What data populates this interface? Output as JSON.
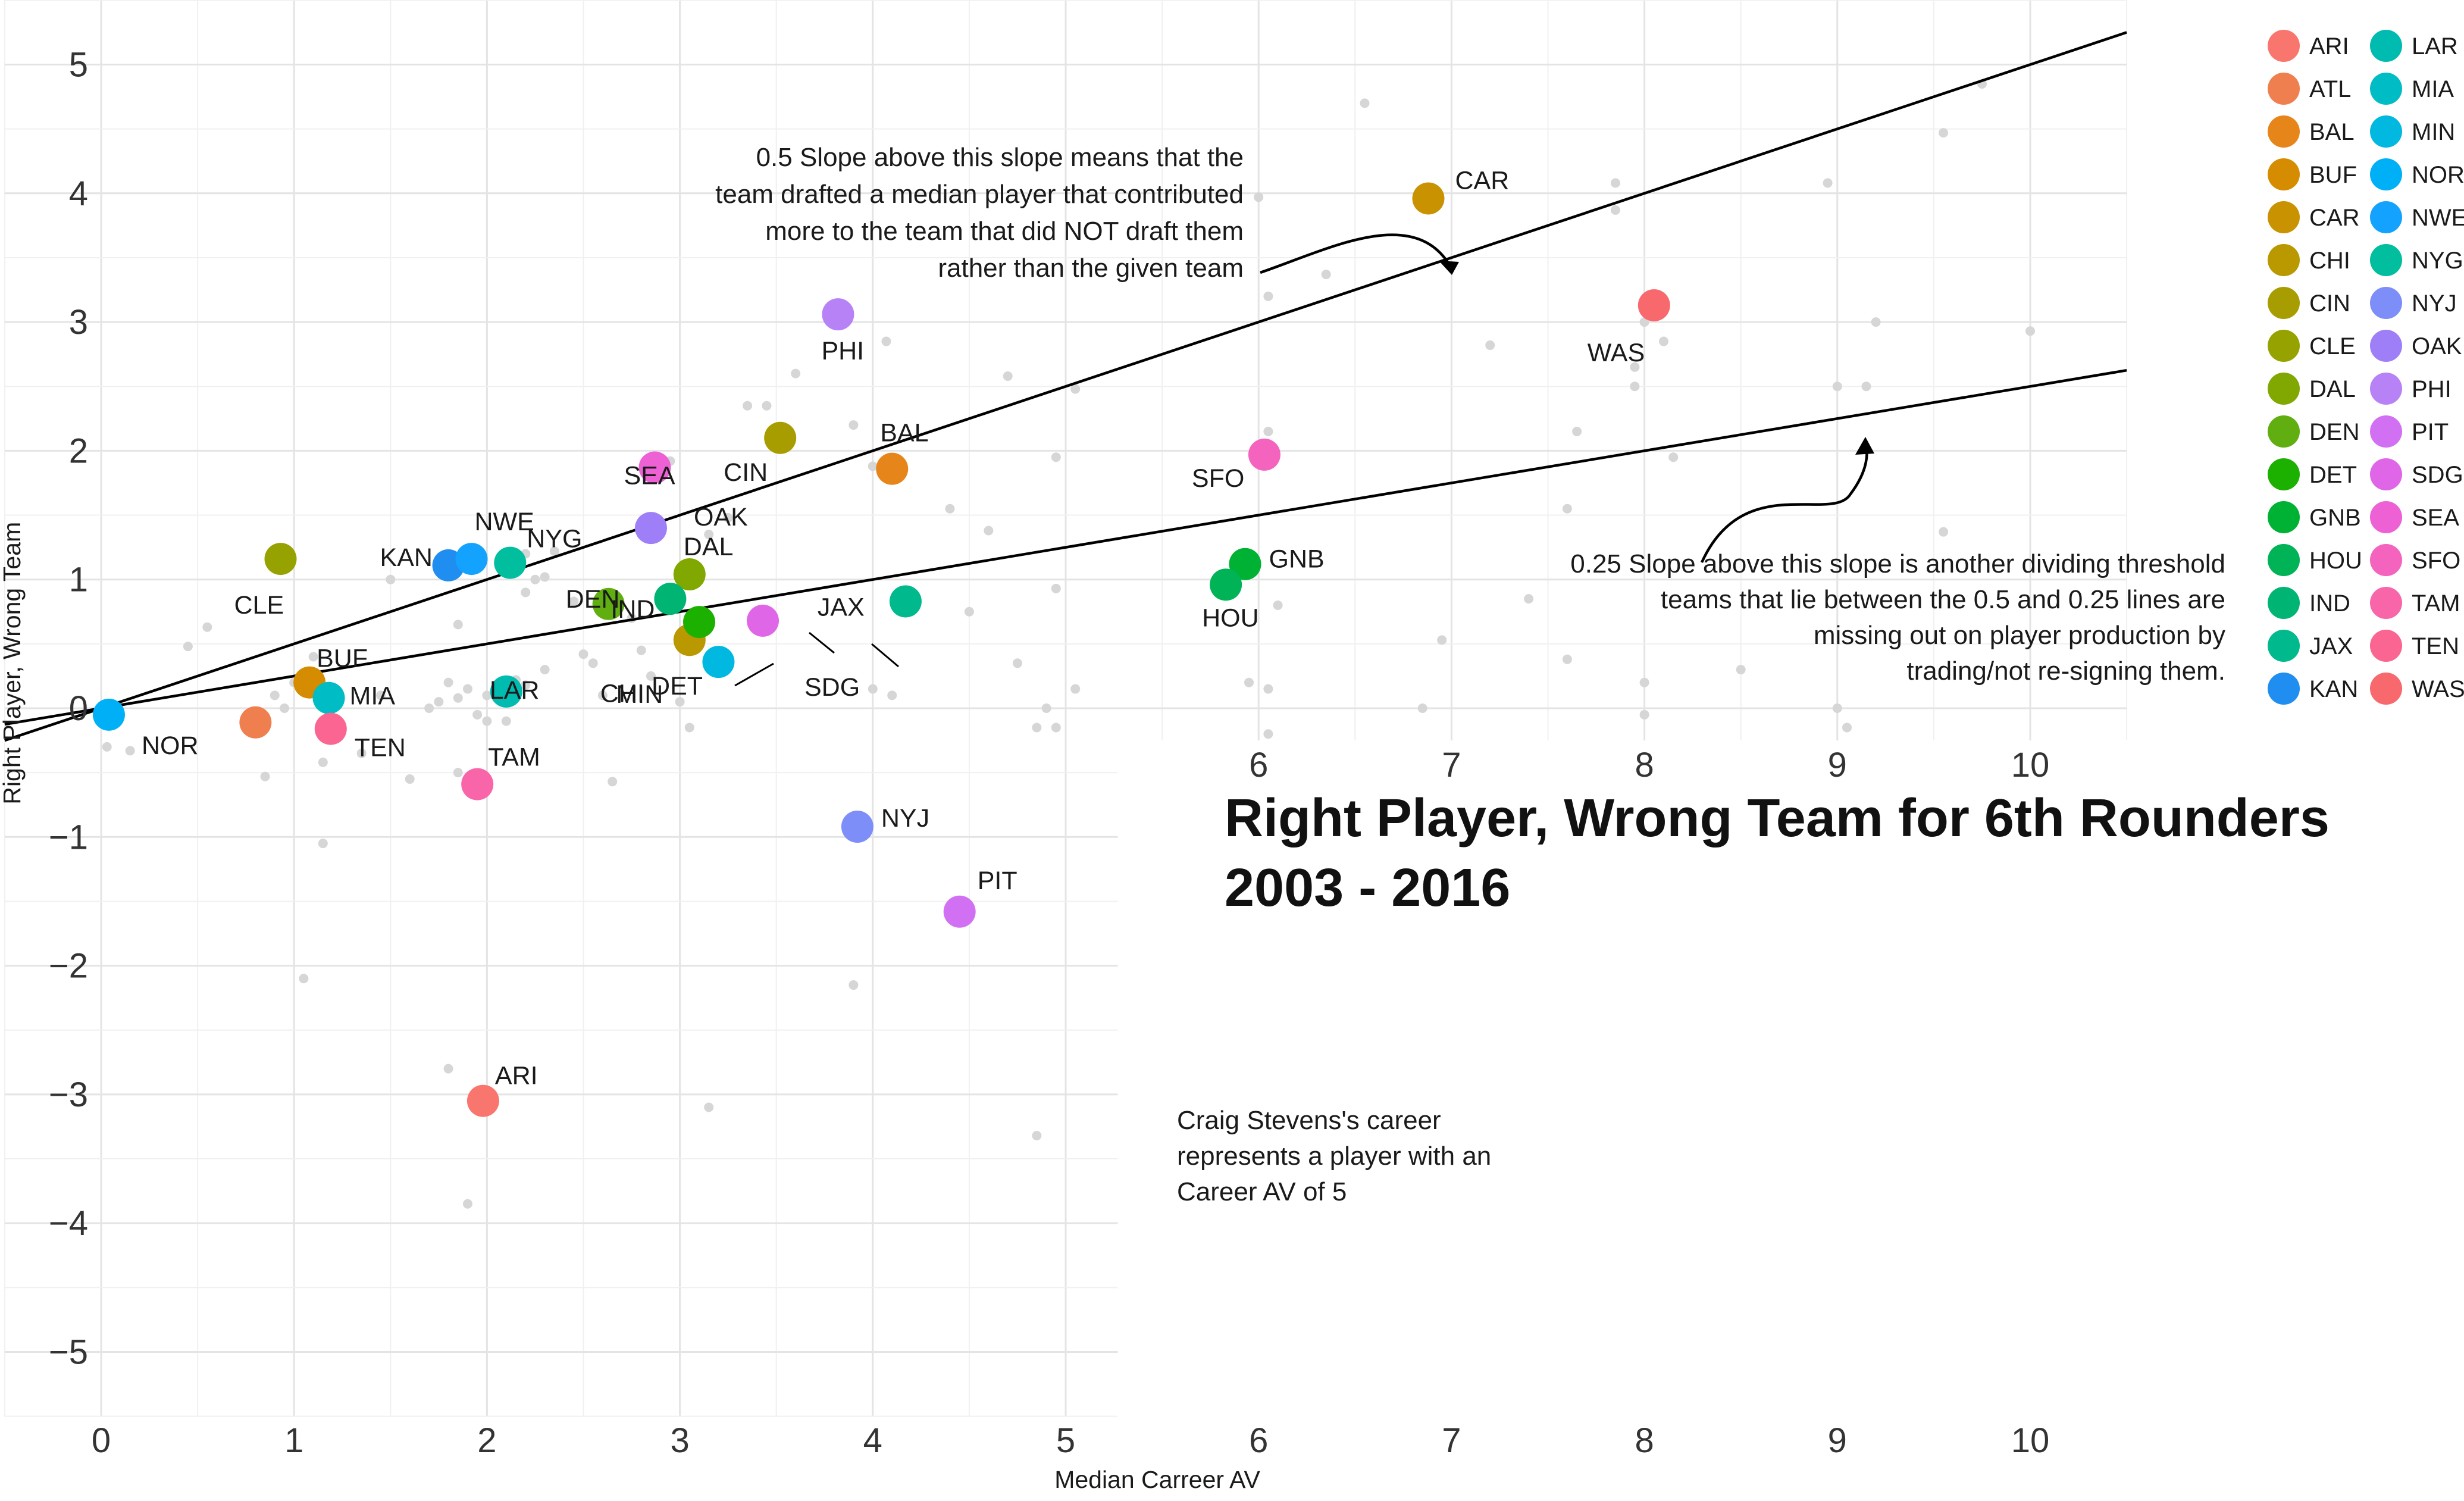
{
  "chart_data": {
    "type": "scatter",
    "title_lines": [
      "Right Player, Wrong Team for 6th Rounders",
      "2003 - 2016"
    ],
    "xlabel": "Median Carreer AV",
    "ylabel": "Right Player, Wrong Team",
    "xlim": [
      -0.5,
      10.5
    ],
    "ylim": [
      -5.5,
      5.5
    ],
    "x_ticks": [
      0,
      1,
      2,
      3,
      4,
      5,
      6,
      7,
      8,
      9,
      10
    ],
    "y_ticks": [
      5,
      4,
      3,
      2,
      1,
      0,
      -1,
      -2,
      -3,
      -4,
      -5
    ],
    "y_tick_labels": [
      "5",
      "4",
      "3",
      "2",
      "1",
      "0",
      "−1",
      "−2",
      "−3",
      "−4",
      "−5"
    ],
    "grid": true,
    "legend_placement": "right",
    "reference_lines": [
      {
        "slope": 0.5,
        "label": "0.5 Slope"
      },
      {
        "slope": 0.25,
        "label": "0.25 Slope"
      }
    ],
    "annotations": {
      "slope_half": [
        "0.5 Slope above this slope means that the",
        "team drafted a median player that contributed",
        "more to the team that did NOT draft them",
        "rather than the given team"
      ],
      "slope_quarter": [
        "0.25 Slope above this slope is another dividing threshold",
        "teams that lie between the 0.5 and 0.25 lines are",
        "missing out on player production by",
        "trading/not re-signing them."
      ],
      "craig": [
        "Craig Stevens's career",
        "represents a player with an",
        "Career AV of 5"
      ]
    },
    "teams": [
      {
        "team": "ARI",
        "x": 1.98,
        "y": -3.05,
        "color": "#F8766D"
      },
      {
        "team": "ATL",
        "x": 0.8,
        "y": -0.11,
        "color": "#F07F4F"
      },
      {
        "team": "BAL",
        "x": 4.1,
        "y": 1.86,
        "color": "#E6861A"
      },
      {
        "team": "BUF",
        "x": 1.08,
        "y": 0.2,
        "color": "#D58C00"
      },
      {
        "team": "CAR",
        "x": 6.88,
        "y": 3.96,
        "color": "#C89200"
      },
      {
        "team": "CHI",
        "x": 3.05,
        "y": 0.53,
        "color": "#B99800"
      },
      {
        "team": "CIN",
        "x": 3.52,
        "y": 2.1,
        "color": "#A89D00"
      },
      {
        "team": "CLE",
        "x": 0.93,
        "y": 1.16,
        "color": "#96A200"
      },
      {
        "team": "DAL",
        "x": 3.05,
        "y": 1.04,
        "color": "#80A800"
      },
      {
        "team": "DEN",
        "x": 2.63,
        "y": 0.81,
        "color": "#60AE10"
      },
      {
        "team": "DET",
        "x": 3.1,
        "y": 0.67,
        "color": "#1CB000"
      },
      {
        "team": "GNB",
        "x": 5.93,
        "y": 1.12,
        "color": "#00B234"
      },
      {
        "team": "HOU",
        "x": 5.83,
        "y": 0.96,
        "color": "#00B356"
      },
      {
        "team": "IND",
        "x": 2.95,
        "y": 0.85,
        "color": "#00B573"
      },
      {
        "team": "JAX",
        "x": 4.17,
        "y": 0.83,
        "color": "#00B98C"
      },
      {
        "team": "KAN",
        "x": 1.8,
        "y": 1.11,
        "color": "#1F8EF0"
      },
      {
        "team": "LAR",
        "x": 2.1,
        "y": 0.13,
        "color": "#00BBB0"
      },
      {
        "team": "MIA",
        "x": 1.18,
        "y": 0.08,
        "color": "#00BCC4"
      },
      {
        "team": "MIN",
        "x": 3.2,
        "y": 0.36,
        "color": "#00B8E0"
      },
      {
        "team": "NOR",
        "x": 0.04,
        "y": -0.05,
        "color": "#00B0F6"
      },
      {
        "team": "NWE",
        "x": 1.92,
        "y": 1.16,
        "color": "#13A3FF"
      },
      {
        "team": "NYG",
        "x": 2.12,
        "y": 1.13,
        "color": "#00BE9E"
      },
      {
        "team": "NYJ",
        "x": 3.92,
        "y": -0.92,
        "color": "#7D8EF9"
      },
      {
        "team": "OAK",
        "x": 2.85,
        "y": 1.4,
        "color": "#9E7FF8"
      },
      {
        "team": "PHI",
        "x": 3.82,
        "y": 3.06,
        "color": "#B882F7"
      },
      {
        "team": "PIT",
        "x": 4.45,
        "y": -1.58,
        "color": "#D270F3"
      },
      {
        "team": "SDG",
        "x": 3.43,
        "y": 0.68,
        "color": "#E066E8"
      },
      {
        "team": "SEA",
        "x": 2.87,
        "y": 1.87,
        "color": "#ED61D5"
      },
      {
        "team": "SFO",
        "x": 6.03,
        "y": 1.97,
        "color": "#F463BE"
      },
      {
        "team": "TAM",
        "x": 1.95,
        "y": -0.59,
        "color": "#F965A9"
      },
      {
        "team": "TEN",
        "x": 1.19,
        "y": -0.16,
        "color": "#FA6591"
      },
      {
        "team": "WAS",
        "x": 8.05,
        "y": 3.13,
        "color": "#F8696D"
      }
    ],
    "legend_columns": [
      [
        "ARI",
        "ATL",
        "BAL",
        "BUF",
        "CAR",
        "CHI",
        "CIN",
        "CLE",
        "DAL",
        "DEN",
        "DET",
        "GNB",
        "HOU",
        "IND",
        "JAX",
        "KAN"
      ],
      [
        "LAR",
        "MIA",
        "MIN",
        "NOR",
        "NWE",
        "NYG",
        "NYJ",
        "OAK",
        "PHI",
        "PIT",
        "SDG",
        "SEA",
        "SFO",
        "TAM",
        "TEN",
        "WAS"
      ]
    ],
    "background_points": [
      [
        1.9,
        -3.85
      ],
      [
        1.8,
        -2.8
      ],
      [
        1.05,
        -2.1
      ],
      [
        1.15,
        -1.05
      ],
      [
        3.9,
        -2.15
      ],
      [
        3.15,
        -3.1
      ],
      [
        4.85,
        -3.32
      ],
      [
        2.65,
        -0.57
      ],
      [
        1.6,
        -0.55
      ],
      [
        0.85,
        -0.53
      ],
      [
        1.85,
        -0.5
      ],
      [
        1.35,
        -0.35
      ],
      [
        1.15,
        -0.42
      ],
      [
        1.15,
        -0.22
      ],
      [
        0.15,
        -0.33
      ],
      [
        0.03,
        -0.3
      ],
      [
        1.45,
        0.1
      ],
      [
        1.8,
        0.2
      ],
      [
        1.9,
        0.15
      ],
      [
        2.0,
        0.1
      ],
      [
        1.85,
        0.08
      ],
      [
        1.75,
        0.05
      ],
      [
        1.95,
        -0.05
      ],
      [
        2.0,
        -0.1
      ],
      [
        2.15,
        0.22
      ],
      [
        2.2,
        0.18
      ],
      [
        2.1,
        -0.1
      ],
      [
        0.9,
        0.1
      ],
      [
        0.95,
        0.0
      ],
      [
        1.0,
        0.2
      ],
      [
        1.1,
        0.4
      ],
      [
        0.45,
        0.48
      ],
      [
        0.55,
        0.63
      ],
      [
        1.85,
        0.65
      ],
      [
        2.3,
        0.3
      ],
      [
        2.55,
        0.35
      ],
      [
        2.25,
        1.0
      ],
      [
        2.3,
        1.02
      ],
      [
        2.2,
        1.2
      ],
      [
        2.35,
        1.22
      ],
      [
        2.2,
        0.9
      ],
      [
        2.75,
        0.7
      ],
      [
        2.85,
        0.25
      ],
      [
        3.05,
        -0.15
      ],
      [
        3.0,
        0.05
      ],
      [
        2.6,
        0.1
      ],
      [
        2.8,
        0.45
      ],
      [
        3.15,
        1.35
      ],
      [
        3.25,
        1.48
      ],
      [
        2.95,
        1.92
      ],
      [
        3.45,
        2.35
      ],
      [
        3.6,
        2.6
      ],
      [
        3.9,
        2.2
      ],
      [
        4.0,
        1.88
      ],
      [
        4.07,
        2.85
      ],
      [
        3.35,
        2.35
      ],
      [
        4.0,
        0.15
      ],
      [
        4.1,
        0.1
      ],
      [
        4.4,
        1.55
      ],
      [
        4.6,
        1.38
      ],
      [
        4.7,
        2.58
      ],
      [
        4.95,
        1.95
      ],
      [
        4.75,
        0.35
      ],
      [
        4.95,
        0.93
      ],
      [
        5.05,
        0.15
      ],
      [
        4.85,
        -0.15
      ],
      [
        4.95,
        -0.15
      ],
      [
        4.9,
        0.0
      ],
      [
        4.5,
        0.75
      ],
      [
        5.05,
        2.48
      ],
      [
        5.95,
        0.2
      ],
      [
        6.05,
        0.15
      ],
      [
        6.05,
        -0.2
      ],
      [
        6.05,
        2.15
      ],
      [
        6.1,
        0.8
      ],
      [
        6.05,
        3.2
      ],
      [
        6.0,
        3.97
      ],
      [
        6.55,
        4.7
      ],
      [
        6.35,
        3.37
      ],
      [
        6.85,
        0.0
      ],
      [
        6.95,
        0.53
      ],
      [
        7.2,
        2.82
      ],
      [
        7.4,
        0.85
      ],
      [
        7.6,
        0.38
      ],
      [
        7.6,
        1.55
      ],
      [
        7.65,
        2.15
      ],
      [
        7.85,
        4.08
      ],
      [
        7.85,
        3.87
      ],
      [
        7.95,
        2.5
      ],
      [
        7.95,
        2.65
      ],
      [
        8.0,
        3.0
      ],
      [
        8.1,
        2.85
      ],
      [
        8.15,
        1.95
      ],
      [
        8.0,
        0.2
      ],
      [
        8.0,
        -0.05
      ],
      [
        8.5,
        0.3
      ],
      [
        9.0,
        2.5
      ],
      [
        9.15,
        2.5
      ],
      [
        9.2,
        3.0
      ],
      [
        8.95,
        4.08
      ],
      [
        9.55,
        4.47
      ],
      [
        9.75,
        4.85
      ],
      [
        9.55,
        1.37
      ],
      [
        10.0,
        2.93
      ],
      [
        9.0,
        0.0
      ],
      [
        9.05,
        -0.15
      ],
      [
        2.5,
        0.42
      ],
      [
        1.7,
        0.0
      ],
      [
        2.45,
        0.83
      ],
      [
        1.5,
        1.0
      ]
    ]
  }
}
